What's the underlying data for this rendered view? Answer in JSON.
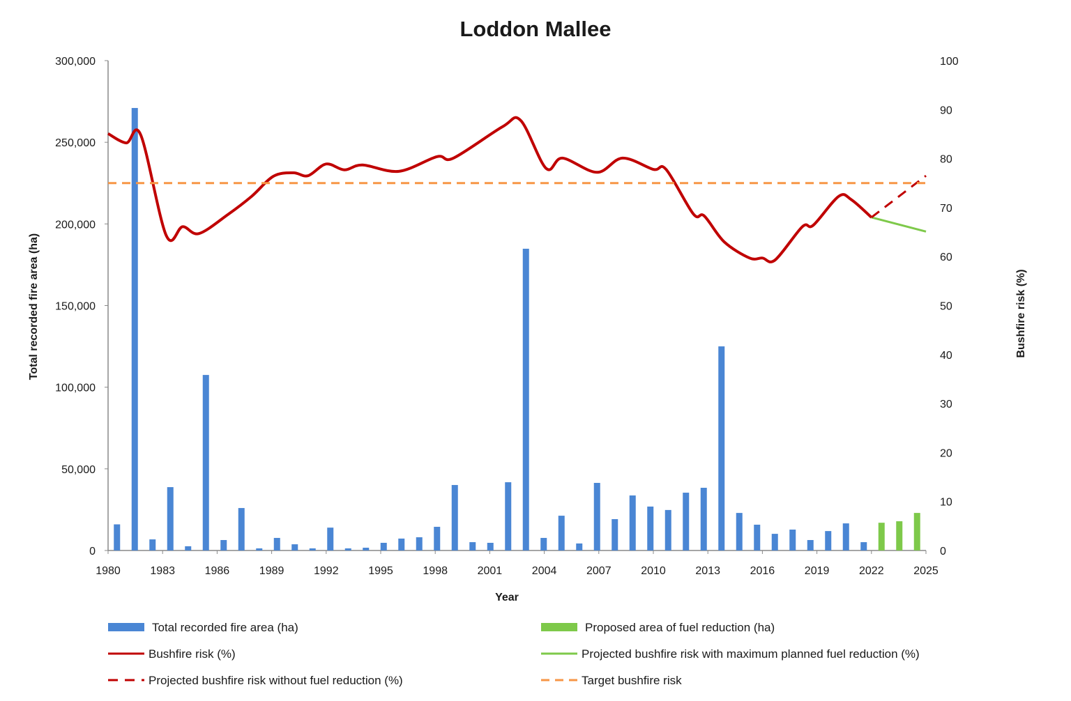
{
  "chart_data": {
    "type": "bar+line",
    "title": "Loddon Mallee",
    "xlabel": "Year",
    "ylabel_left": "Total recorded fire area (ha)",
    "ylabel_right": "Bushfire risk (%)",
    "xlim": [
      1980,
      2025
    ],
    "ylim_left": [
      0,
      300000
    ],
    "ylim_right": [
      0,
      100
    ],
    "x_ticks": [
      "1980",
      "1983",
      "1986",
      "1989",
      "1992",
      "1995",
      "1998",
      "2001",
      "2004",
      "2007",
      "2010",
      "2013",
      "2016",
      "2019",
      "2022",
      "2025"
    ],
    "y_ticks_left": [
      "0",
      "50,000",
      "100,000",
      "150,000",
      "200,000",
      "250,000",
      "300,000"
    ],
    "y_ticks_right": [
      "0",
      "10",
      "20",
      "30",
      "40",
      "50",
      "60",
      "70",
      "80",
      "90",
      "100"
    ],
    "bar_years": [
      1980,
      1981,
      1982,
      1983,
      1984,
      1985,
      1986,
      1987,
      1988,
      1989,
      1990,
      1991,
      1992,
      1993,
      1994,
      1995,
      1996,
      1997,
      1998,
      1999,
      2000,
      2001,
      2002,
      2003,
      2004,
      2005,
      2006,
      2007,
      2008,
      2009,
      2010,
      2011,
      2012,
      2013,
      2014,
      2015,
      2016,
      2017,
      2018,
      2019,
      2020,
      2021,
      2022,
      2023,
      2024,
      2025
    ],
    "series": [
      {
        "name": "Total recorded fire area (ha)",
        "type": "bar",
        "axis": "left",
        "color": "#4a86d4",
        "years": [
          1980,
          1981,
          1982,
          1983,
          1984,
          1985,
          1986,
          1987,
          1988,
          1989,
          1990,
          1991,
          1992,
          1993,
          1994,
          1995,
          1996,
          1997,
          1998,
          1999,
          2000,
          2001,
          2002,
          2003,
          2004,
          2005,
          2006,
          2007,
          2008,
          2009,
          2010,
          2011,
          2012,
          2013,
          2014,
          2015,
          2016,
          2017,
          2018,
          2019,
          2020,
          2021,
          2022
        ],
        "values": [
          16000,
          271000,
          6800,
          38800,
          2600,
          107500,
          6400,
          26000,
          1300,
          7700,
          3800,
          1300,
          14000,
          1300,
          1700,
          4700,
          7300,
          8100,
          14500,
          40100,
          5100,
          4700,
          41800,
          184800,
          7700,
          21300,
          4300,
          41400,
          19200,
          33700,
          26900,
          24800,
          35400,
          38400,
          125000,
          23000,
          15800,
          10200,
          12800,
          6400,
          11900,
          16600,
          5100
        ]
      },
      {
        "name": "Proposed area of fuel reduction (ha)",
        "type": "bar",
        "axis": "left",
        "color": "#7ec94a",
        "years": [
          2023,
          2024,
          2025
        ],
        "values": [
          17000,
          17900,
          23000
        ]
      },
      {
        "name": "Bushfire risk (%)",
        "type": "line",
        "axis": "right",
        "color": "#c00000",
        "x": [
          1980,
          1981,
          1981.8,
          1983.2,
          1984.1,
          1985,
          1986.6,
          1987.9,
          1989.1,
          1990.2,
          1991,
          1992,
          1993,
          1994,
          1996,
          1998.1,
          1999,
          2001.7,
          2002.7,
          2004.1,
          2005,
          2006.9,
          2008.3,
          2010,
          2010.7,
          2012.2,
          2012.8,
          2013.9,
          2015.3,
          2016,
          2016.7,
          2018.2,
          2018.8,
          2020.2,
          2020.9,
          2022
        ],
        "values": [
          85.1,
          83.2,
          84.8,
          64.3,
          66.1,
          64.7,
          68.6,
          72.3,
          76.4,
          77.1,
          76.5,
          78.9,
          77.7,
          78.7,
          77.4,
          80.4,
          80.1,
          86.5,
          87.8,
          78.0,
          80.1,
          77.2,
          80.1,
          77.8,
          77.8,
          68.7,
          68.3,
          63.0,
          59.7,
          59.7,
          59.3,
          66.1,
          66.4,
          72.3,
          71.6,
          68.0
        ]
      },
      {
        "name": "Projected bushfire risk with maximum planned fuel reduction (%)",
        "type": "line",
        "axis": "right",
        "color": "#7ec94a",
        "x": [
          2022,
          2025
        ],
        "values": [
          68.0,
          65.1
        ]
      },
      {
        "name": "Projected bushfire risk without fuel reduction (%)",
        "type": "line",
        "dashed": true,
        "axis": "right",
        "color": "#c00000",
        "x": [
          2022,
          2025
        ],
        "values": [
          68.0,
          76.5
        ]
      },
      {
        "name": "Target bushfire risk",
        "type": "line",
        "dashed": true,
        "axis": "right",
        "color": "#f79646",
        "x": [
          1980,
          2025
        ],
        "values": [
          75,
          75
        ]
      }
    ],
    "legend_position": "bottom",
    "legend": [
      {
        "label": "Total recorded fire area (ha)",
        "kind": "bar",
        "color": "#4a86d4"
      },
      {
        "label": "Proposed area of fuel reduction (ha)",
        "kind": "bar",
        "color": "#7ec94a"
      },
      {
        "label": "Bushfire risk (%)",
        "kind": "line",
        "color": "#c00000"
      },
      {
        "label": "Projected bushfire risk with maximum planned fuel reduction (%)",
        "kind": "line",
        "color": "#7ec94a"
      },
      {
        "label": "Projected bushfire risk without fuel reduction (%)",
        "kind": "dash",
        "color": "#c00000"
      },
      {
        "label": "Target bushfire risk",
        "kind": "dash",
        "color": "#f79646"
      }
    ],
    "grid": false
  }
}
